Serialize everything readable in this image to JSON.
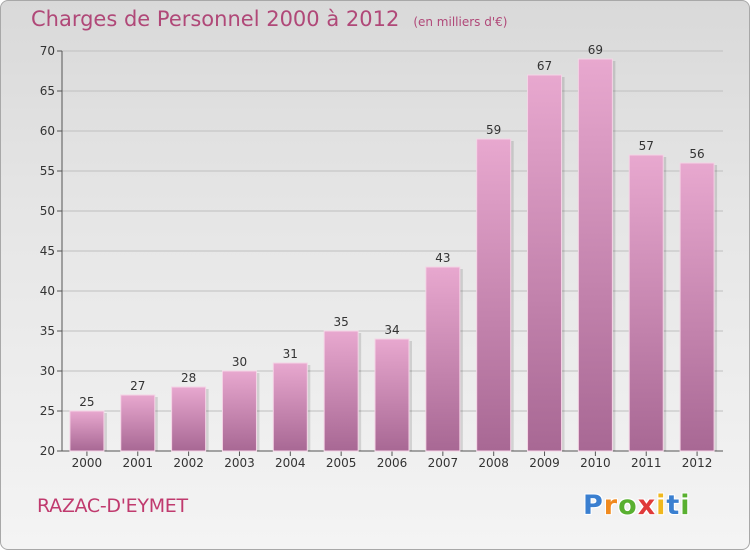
{
  "header": {
    "title": "Charges de Personnel 2000 à 2012",
    "subtitle": "(en milliers d'€)"
  },
  "footer": {
    "place": "RAZAC-D'EYMET",
    "logo": {
      "letters": [
        "P",
        "r",
        "o",
        "x",
        "i",
        "t",
        "i"
      ],
      "colors": [
        "#3a7fd0",
        "#f08a1e",
        "#59b030",
        "#e03a3a",
        "#f0b81e",
        "#3a7fd0",
        "#59b030"
      ]
    }
  },
  "colors": {
    "bar_light": "#e8a8cf",
    "bar_dark": "#a86894",
    "grid": "#bfbfbf",
    "accent": "#b04878"
  },
  "chart_data": {
    "type": "bar",
    "categories": [
      "2000",
      "2001",
      "2002",
      "2003",
      "2004",
      "2005",
      "2006",
      "2007",
      "2008",
      "2009",
      "2010",
      "2011",
      "2012"
    ],
    "values": [
      25,
      27,
      28,
      30,
      31,
      35,
      34,
      43,
      59,
      67,
      69,
      57,
      56
    ],
    "title": "Charges de Personnel 2000 à 2012",
    "subtitle": "(en milliers d'€)",
    "ylim": [
      20,
      70
    ],
    "yticks": [
      20,
      25,
      30,
      35,
      40,
      45,
      50,
      55,
      60,
      65,
      70
    ],
    "grid": true,
    "data_labels": true
  }
}
